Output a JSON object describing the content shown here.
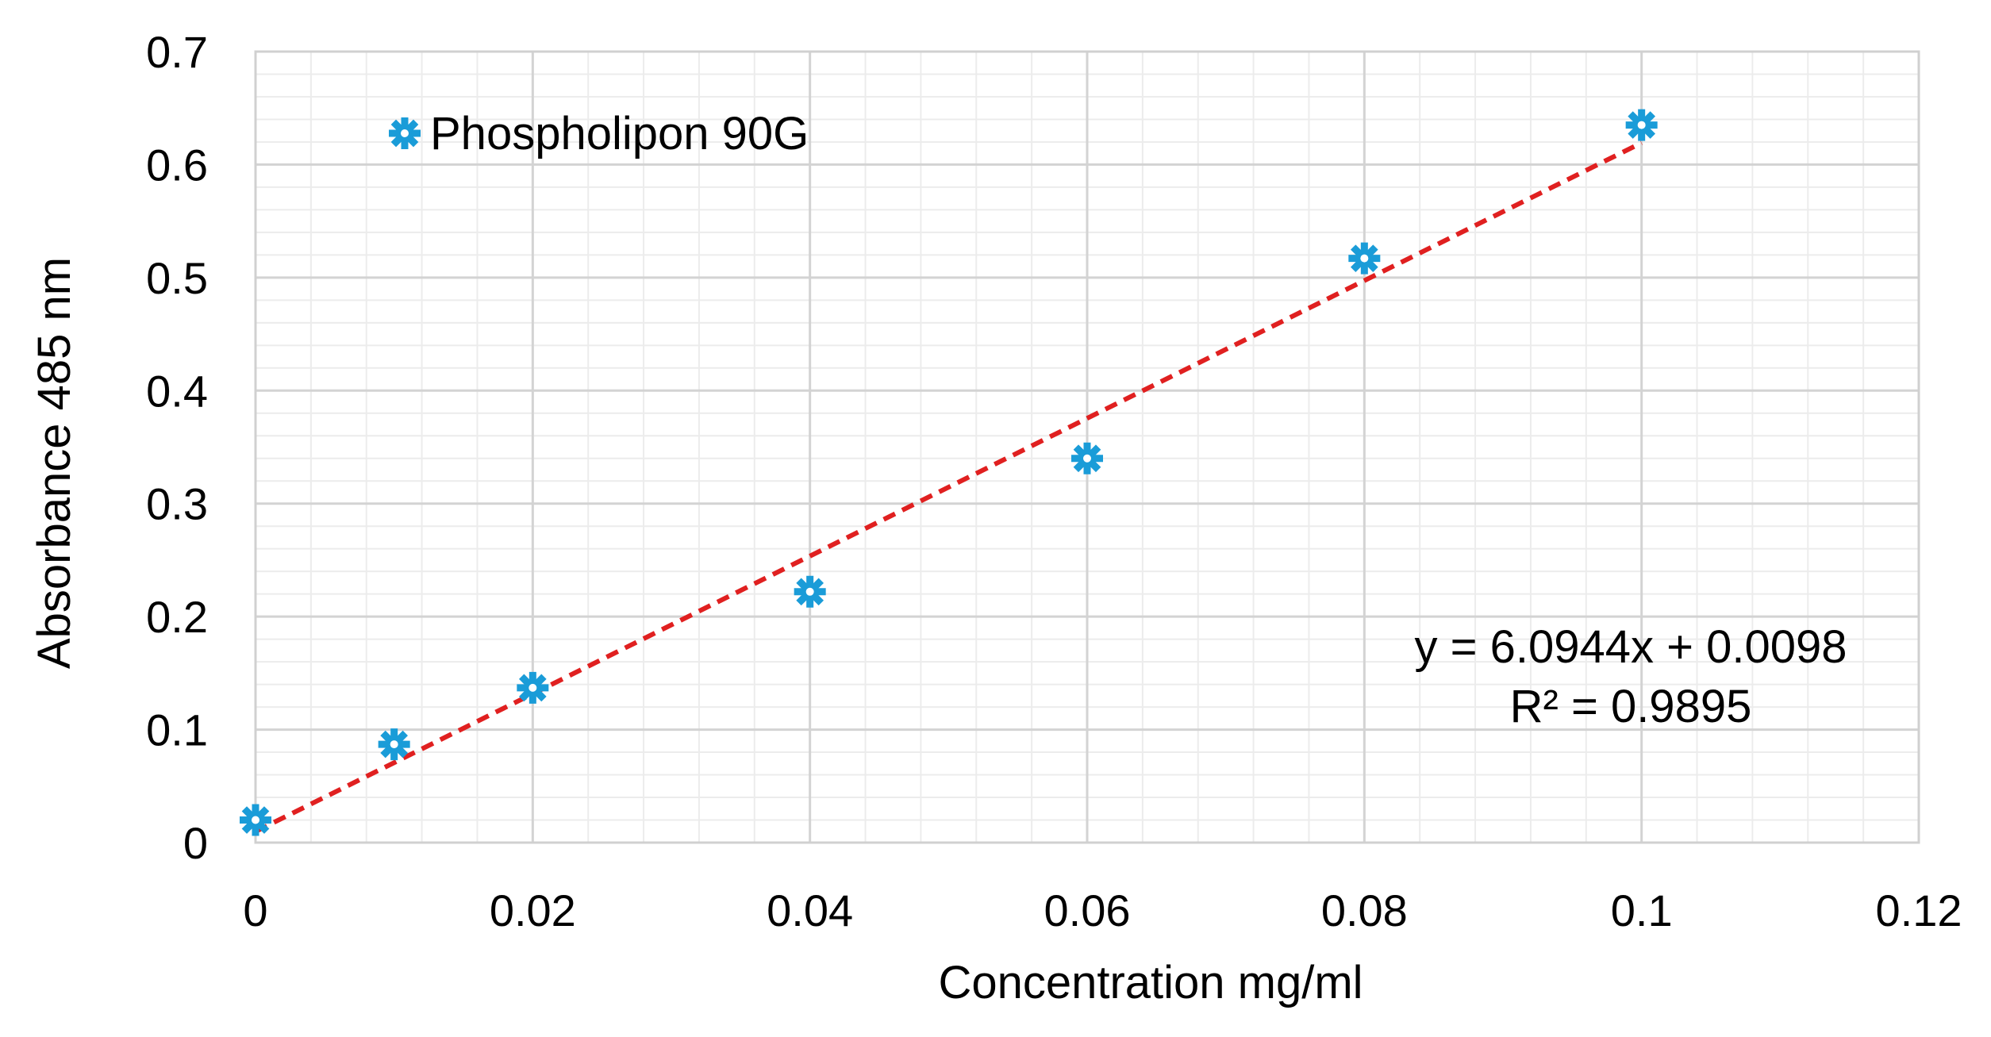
{
  "chart_data": {
    "type": "scatter",
    "title": "",
    "xlabel": "Concentration mg/ml",
    "ylabel": "Absorbance 485 nm",
    "xlim": [
      0,
      0.12
    ],
    "ylim": [
      0,
      0.7
    ],
    "x_ticks": [
      0,
      0.02,
      0.04,
      0.06,
      0.08,
      0.1,
      0.12
    ],
    "x_tick_labels": [
      "0",
      "0.02",
      "0.04",
      "0.06",
      "0.08",
      "0.1",
      "0.12"
    ],
    "y_ticks": [
      0,
      0.1,
      0.2,
      0.3,
      0.4,
      0.5,
      0.6,
      0.7
    ],
    "y_tick_labels": [
      "0",
      "0.1",
      "0.2",
      "0.3",
      "0.4",
      "0.5",
      "0.6",
      "0.7"
    ],
    "x_minor_step": 0.004,
    "y_minor_step": 0.02,
    "grid": true,
    "legend_position": "top-left",
    "series": [
      {
        "name": "Phospholipon 90G",
        "color": "#1a9cd8",
        "marker": "asterisk",
        "x": [
          0,
          0.01,
          0.02,
          0.04,
          0.06,
          0.08,
          0.1
        ],
        "y": [
          0.02,
          0.087,
          0.137,
          0.222,
          0.34,
          0.517,
          0.635
        ]
      }
    ],
    "trendline": {
      "type": "linear",
      "slope": 6.0944,
      "intercept": 0.0098,
      "x_range": [
        0,
        0.1
      ],
      "color": "#e02020",
      "style": "dashed",
      "equation_label": "y = 6.0944x  + 0.0098",
      "r2_label": "R² = 0.9895"
    }
  }
}
